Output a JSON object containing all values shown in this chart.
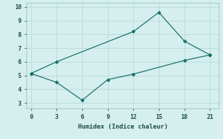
{
  "xlabel": "Humidex (Indice chaleur)",
  "background_color": "#d4efee",
  "grid_color": "#b8d8d6",
  "line_color": "#1a6e6a",
  "line1_x": [
    0,
    3,
    12,
    15,
    18,
    21
  ],
  "line1_y": [
    5.15,
    6.0,
    8.2,
    9.6,
    7.5,
    6.5
  ],
  "line2_x": [
    0,
    3,
    6,
    9,
    12,
    18,
    21
  ],
  "line2_y": [
    5.15,
    4.5,
    3.2,
    4.7,
    5.1,
    6.1,
    6.5
  ],
  "xlim": [
    -0.5,
    22
  ],
  "ylim": [
    2.6,
    10.3
  ],
  "xticks": [
    0,
    3,
    6,
    9,
    12,
    15,
    18,
    21
  ],
  "yticks": [
    3,
    4,
    5,
    6,
    7,
    8,
    9,
    10
  ],
  "marker": "D",
  "markersize": 2.5,
  "linewidth": 0.9,
  "label_fontsize": 6.5,
  "tick_fontsize": 6.0
}
